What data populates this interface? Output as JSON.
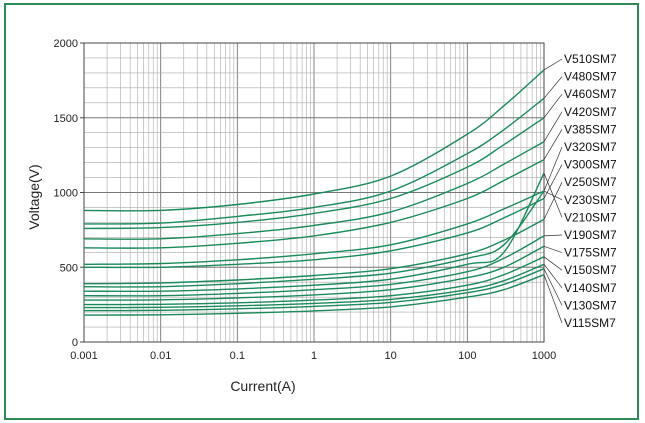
{
  "chart_data": {
    "type": "line",
    "title": "",
    "xlabel": "Current(A)",
    "ylabel": "Voltage(V)",
    "x_scale": "log",
    "xlim": [
      0.001,
      1000
    ],
    "ylim": [
      0,
      2000
    ],
    "x_ticks": [
      "0.001",
      "0.01",
      "0.1",
      "1",
      "10",
      "100",
      "1000"
    ],
    "y_ticks": [
      "0",
      "500",
      "1000",
      "1500",
      "2000"
    ],
    "grid": true,
    "line_color": "#1a8a5a",
    "x": [
      0.001,
      0.01,
      0.1,
      1,
      10,
      100,
      300,
      1000
    ],
    "series": [
      {
        "name": "V510SM7",
        "values": [
          880,
          880,
          920,
          990,
          1110,
          1390,
          1580,
          1820
        ]
      },
      {
        "name": "V480SM7",
        "values": [
          790,
          795,
          840,
          900,
          1010,
          1260,
          1420,
          1630
        ]
      },
      {
        "name": "V460SM7",
        "values": [
          760,
          765,
          800,
          860,
          960,
          1170,
          1320,
          1500
        ]
      },
      {
        "name": "V420SM7",
        "values": [
          690,
          690,
          725,
          780,
          870,
          1060,
          1190,
          1340
        ]
      },
      {
        "name": "V385SM7",
        "values": [
          630,
          630,
          660,
          710,
          800,
          960,
          1080,
          1220
        ]
      },
      {
        "name": "V320SM7",
        "values": [
          520,
          525,
          550,
          590,
          650,
          790,
          890,
          1010
        ]
      },
      {
        "name": "V300SM7",
        "values": [
          500,
          500,
          520,
          550,
          610,
          730,
          830,
          960
        ]
      },
      {
        "name": "V250SM7",
        "values": [
          390,
          395,
          415,
          445,
          490,
          590,
          680,
          820
        ]
      },
      {
        "name": "V230SM7",
        "values": [
          370,
          370,
          390,
          420,
          460,
          560,
          650,
          1010
        ]
      },
      {
        "name": "V210SM7",
        "values": [
          340,
          340,
          355,
          380,
          420,
          520,
          600,
          1130
        ]
      },
      {
        "name": "V190SM7",
        "values": [
          310,
          310,
          325,
          350,
          385,
          470,
          560,
          710
        ]
      },
      {
        "name": "V175SM7",
        "values": [
          280,
          282,
          295,
          315,
          350,
          430,
          500,
          640
        ]
      },
      {
        "name": "V150SM7",
        "values": [
          250,
          252,
          262,
          280,
          310,
          380,
          450,
          570
        ]
      },
      {
        "name": "V140SM7",
        "values": [
          230,
          232,
          242,
          258,
          285,
          350,
          410,
          520
        ]
      },
      {
        "name": "V130SM7",
        "values": [
          210,
          212,
          222,
          238,
          265,
          330,
          385,
          490
        ]
      },
      {
        "name": "V115SM7",
        "values": [
          180,
          182,
          192,
          208,
          235,
          300,
          350,
          450
        ]
      }
    ]
  }
}
